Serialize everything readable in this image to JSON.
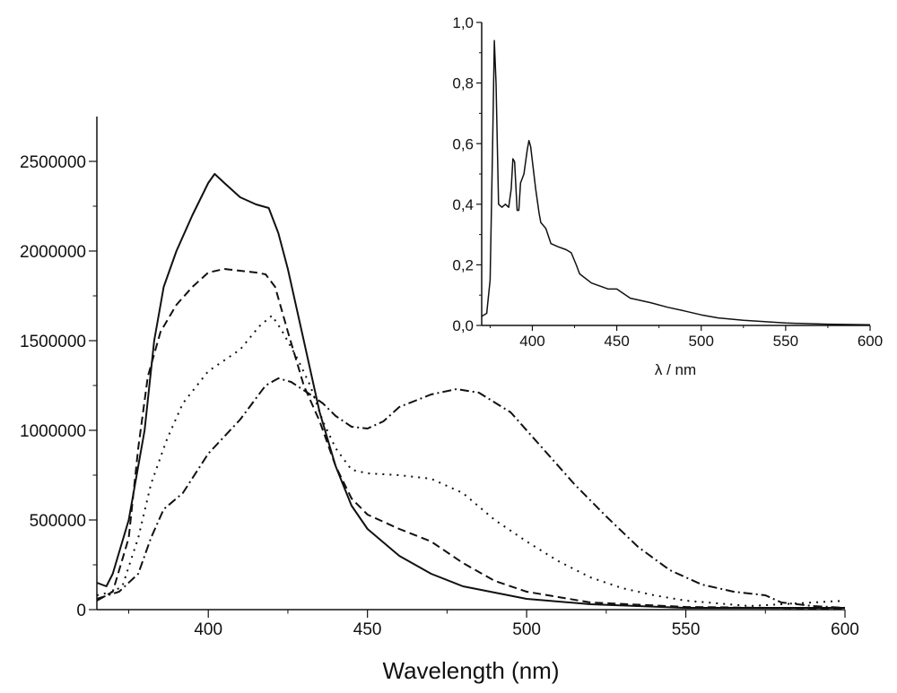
{
  "chart_data": [
    {
      "type": "line",
      "xlabel": "Wavelength (nm)",
      "ylabel": "",
      "xlim": [
        365,
        600
      ],
      "ylim": [
        0,
        2750000
      ],
      "xticks": [
        400,
        450,
        500,
        550,
        600
      ],
      "yticks": [
        0,
        500000,
        1000000,
        1500000,
        2000000,
        2500000
      ],
      "xtick_labels": [
        "400",
        "450",
        "500",
        "550",
        "600"
      ],
      "ytick_labels": [
        "0",
        "500000",
        "1000000",
        "1500000",
        "2000000",
        "2500000"
      ],
      "grid": false,
      "color": "#111111",
      "series": [
        {
          "style": "solid",
          "points": [
            [
              365,
              150000
            ],
            [
              368,
              130000
            ],
            [
              370,
              200000
            ],
            [
              375,
              500000
            ],
            [
              380,
              1000000
            ],
            [
              383,
              1500000
            ],
            [
              386,
              1800000
            ],
            [
              390,
              2000000
            ],
            [
              395,
              2200000
            ],
            [
              400,
              2380000
            ],
            [
              402,
              2430000
            ],
            [
              405,
              2380000
            ],
            [
              410,
              2300000
            ],
            [
              415,
              2260000
            ],
            [
              419,
              2240000
            ],
            [
              422,
              2100000
            ],
            [
              425,
              1900000
            ],
            [
              430,
              1500000
            ],
            [
              435,
              1100000
            ],
            [
              440,
              800000
            ],
            [
              445,
              580000
            ],
            [
              450,
              450000
            ],
            [
              460,
              300000
            ],
            [
              470,
              200000
            ],
            [
              480,
              130000
            ],
            [
              500,
              60000
            ],
            [
              520,
              30000
            ],
            [
              550,
              10000
            ],
            [
              600,
              10000
            ]
          ]
        },
        {
          "style": "dashed",
          "points": [
            [
              365,
              50000
            ],
            [
              370,
              100000
            ],
            [
              375,
              400000
            ],
            [
              378,
              900000
            ],
            [
              381,
              1300000
            ],
            [
              385,
              1550000
            ],
            [
              390,
              1700000
            ],
            [
              395,
              1800000
            ],
            [
              400,
              1880000
            ],
            [
              405,
              1900000
            ],
            [
              410,
              1890000
            ],
            [
              415,
              1880000
            ],
            [
              418,
              1870000
            ],
            [
              421,
              1800000
            ],
            [
              425,
              1550000
            ],
            [
              430,
              1250000
            ],
            [
              435,
              1050000
            ],
            [
              440,
              800000
            ],
            [
              445,
              620000
            ],
            [
              450,
              530000
            ],
            [
              460,
              450000
            ],
            [
              470,
              380000
            ],
            [
              480,
              260000
            ],
            [
              490,
              160000
            ],
            [
              500,
              100000
            ],
            [
              520,
              40000
            ],
            [
              550,
              15000
            ],
            [
              600,
              5000
            ]
          ]
        },
        {
          "style": "dotted",
          "points": [
            [
              365,
              80000
            ],
            [
              370,
              100000
            ],
            [
              373,
              130000
            ],
            [
              378,
              400000
            ],
            [
              382,
              700000
            ],
            [
              387,
              950000
            ],
            [
              392,
              1150000
            ],
            [
              400,
              1330000
            ],
            [
              410,
              1450000
            ],
            [
              416,
              1580000
            ],
            [
              420,
              1640000
            ],
            [
              423,
              1560000
            ],
            [
              428,
              1400000
            ],
            [
              432,
              1250000
            ],
            [
              436,
              1050000
            ],
            [
              440,
              900000
            ],
            [
              445,
              780000
            ],
            [
              450,
              760000
            ],
            [
              460,
              750000
            ],
            [
              470,
              730000
            ],
            [
              480,
              650000
            ],
            [
              490,
              500000
            ],
            [
              500,
              380000
            ],
            [
              510,
              270000
            ],
            [
              520,
              180000
            ],
            [
              530,
              120000
            ],
            [
              540,
              80000
            ],
            [
              550,
              50000
            ],
            [
              570,
              20000
            ],
            [
              600,
              50000
            ]
          ]
        },
        {
          "style": "dash-dot",
          "points": [
            [
              365,
              60000
            ],
            [
              372,
              100000
            ],
            [
              378,
              200000
            ],
            [
              382,
              400000
            ],
            [
              386,
              560000
            ],
            [
              392,
              650000
            ],
            [
              400,
              870000
            ],
            [
              410,
              1060000
            ],
            [
              418,
              1250000
            ],
            [
              422,
              1290000
            ],
            [
              426,
              1270000
            ],
            [
              432,
              1200000
            ],
            [
              436,
              1150000
            ],
            [
              440,
              1080000
            ],
            [
              445,
              1020000
            ],
            [
              450,
              1010000
            ],
            [
              455,
              1050000
            ],
            [
              460,
              1130000
            ],
            [
              470,
              1200000
            ],
            [
              478,
              1230000
            ],
            [
              485,
              1210000
            ],
            [
              495,
              1100000
            ],
            [
              505,
              900000
            ],
            [
              515,
              700000
            ],
            [
              525,
              520000
            ],
            [
              535,
              350000
            ],
            [
              545,
              220000
            ],
            [
              555,
              140000
            ],
            [
              565,
              100000
            ],
            [
              575,
              80000
            ],
            [
              580,
              40000
            ],
            [
              590,
              20000
            ],
            [
              600,
              10000
            ]
          ]
        }
      ]
    },
    {
      "type": "line",
      "xlabel": "λ / nm",
      "ylabel": "",
      "xlim": [
        370,
        600
      ],
      "ylim": [
        0,
        1.0
      ],
      "xticks": [
        400,
        450,
        500,
        550,
        600
      ],
      "yticks": [
        0,
        0.2,
        0.4,
        0.6,
        0.8,
        1.0
      ],
      "xtick_labels": [
        "400",
        "450",
        "500",
        "550",
        "600"
      ],
      "ytick_labels": [
        "0,0",
        "0,2",
        "0,4",
        "0,6",
        "0,8",
        "1,0"
      ],
      "grid": false,
      "color": "#111111",
      "series": [
        {
          "style": "solid",
          "points": [
            [
              370,
              0.03
            ],
            [
              373,
              0.04
            ],
            [
              375,
              0.15
            ],
            [
              376.5,
              0.6
            ],
            [
              377.5,
              0.94
            ],
            [
              378.5,
              0.8
            ],
            [
              380,
              0.4
            ],
            [
              382,
              0.39
            ],
            [
              384,
              0.4
            ],
            [
              386,
              0.39
            ],
            [
              387.5,
              0.45
            ],
            [
              388.5,
              0.55
            ],
            [
              389.5,
              0.54
            ],
            [
              391,
              0.38
            ],
            [
              392,
              0.38
            ],
            [
              393,
              0.47
            ],
            [
              395,
              0.5
            ],
            [
              397,
              0.58
            ],
            [
              398,
              0.61
            ],
            [
              399,
              0.59
            ],
            [
              402,
              0.45
            ],
            [
              404,
              0.37
            ],
            [
              405,
              0.34
            ],
            [
              408,
              0.32
            ],
            [
              411,
              0.27
            ],
            [
              415,
              0.26
            ],
            [
              420,
              0.25
            ],
            [
              423,
              0.24
            ],
            [
              426,
              0.2
            ],
            [
              428,
              0.17
            ],
            [
              435,
              0.14
            ],
            [
              445,
              0.12
            ],
            [
              450,
              0.12
            ],
            [
              458,
              0.09
            ],
            [
              470,
              0.075
            ],
            [
              480,
              0.06
            ],
            [
              490,
              0.048
            ],
            [
              500,
              0.035
            ],
            [
              510,
              0.025
            ],
            [
              525,
              0.017
            ],
            [
              550,
              0.008
            ],
            [
              575,
              0.004
            ],
            [
              600,
              0.002
            ]
          ]
        }
      ]
    }
  ]
}
